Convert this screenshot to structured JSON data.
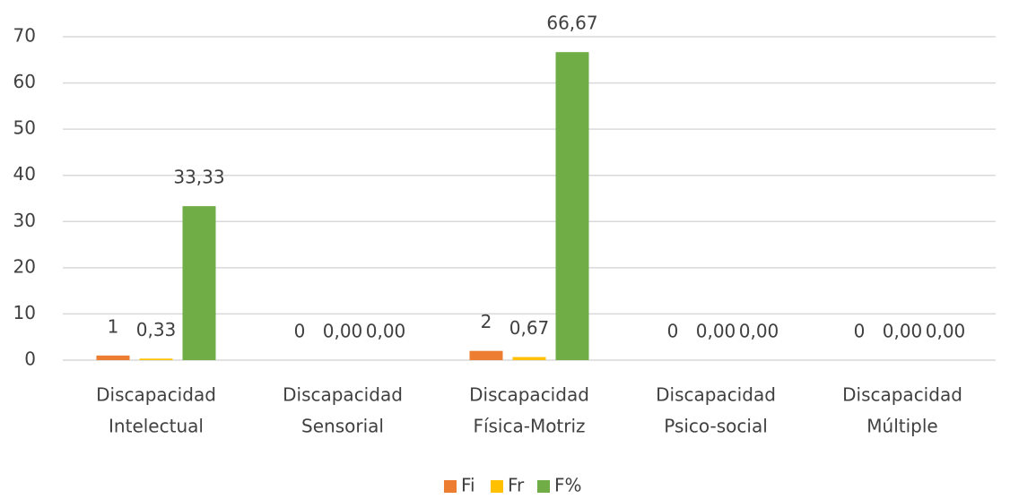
{
  "chart_data": {
    "type": "bar",
    "categories": [
      [
        "Discapacidad",
        "Intelectual"
      ],
      [
        "Discapacidad",
        "Sensorial"
      ],
      [
        "Discapacidad",
        "Física-Motriz"
      ],
      [
        "Discapacidad",
        "Psico-social"
      ],
      [
        "Discapacidad",
        "Múltiple"
      ]
    ],
    "series": [
      {
        "name": "Fi",
        "color": "#ed7d31",
        "values": [
          1,
          0,
          2,
          0,
          0
        ]
      },
      {
        "name": "Fr",
        "color": "#ffc000",
        "values": [
          0.33,
          0,
          0.67,
          0,
          0
        ],
        "value_labels": [
          "0,33",
          "0,00",
          "0,67",
          "0,00",
          "0,00"
        ]
      },
      {
        "name": "F%",
        "color": "#70ad47",
        "values": [
          33.33,
          0,
          66.67,
          0,
          0
        ],
        "value_labels": [
          "33,33",
          "0,00",
          "66,67",
          "0,00",
          "0,00"
        ]
      }
    ],
    "ylim": [
      0,
      70
    ],
    "yticks": [
      0,
      10,
      20,
      30,
      40,
      50,
      60,
      70
    ],
    "grid": true,
    "legend": "bottom"
  }
}
